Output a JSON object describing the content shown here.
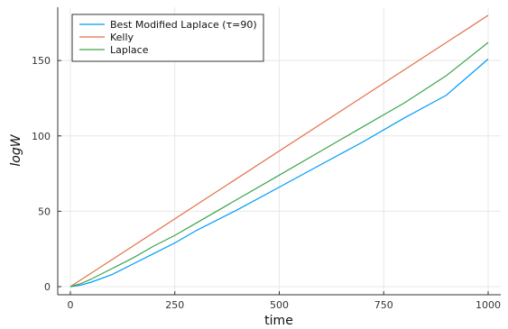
{
  "chart_data": {
    "type": "line",
    "xlabel": "time",
    "ylabel": "logW",
    "xlim": [
      0,
      1000
    ],
    "ylim": [
      0,
      180
    ],
    "x_ticks": [
      0,
      250,
      500,
      750,
      1000
    ],
    "y_ticks": [
      0,
      50,
      100,
      150
    ],
    "grid": true,
    "legend_position": "top-left",
    "series": [
      {
        "name": "Best Modified Laplace (τ=90)",
        "color": "#009AFA",
        "x": [
          0,
          25,
          50,
          100,
          150,
          200,
          250,
          300,
          400,
          500,
          600,
          700,
          800,
          900,
          1000
        ],
        "y": [
          0,
          1,
          3,
          8,
          15,
          22,
          29,
          37,
          51,
          66,
          81,
          96,
          112,
          127,
          151
        ]
      },
      {
        "name": "Kelly",
        "color": "#E26F46",
        "x": [
          0,
          250,
          500,
          750,
          1000
        ],
        "y": [
          0,
          45,
          90,
          135,
          180
        ]
      },
      {
        "name": "Laplace",
        "color": "#3DA44D",
        "x": [
          0,
          25,
          50,
          100,
          150,
          200,
          250,
          300,
          400,
          500,
          600,
          700,
          800,
          900,
          1000
        ],
        "y": [
          0,
          2,
          5,
          12,
          19,
          27,
          34,
          42,
          58,
          74,
          90,
          106,
          122,
          140,
          162
        ]
      }
    ]
  }
}
